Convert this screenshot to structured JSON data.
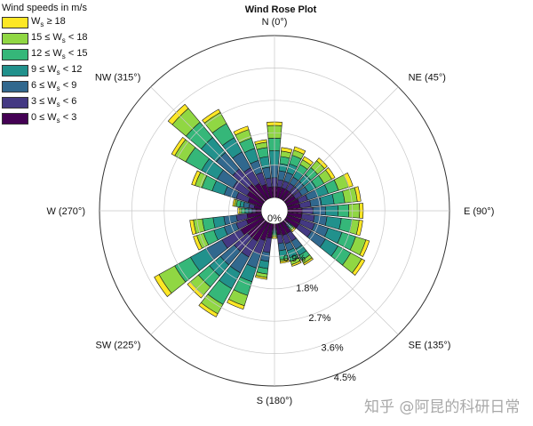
{
  "watermark": "知乎 @阿昆的科研日常",
  "chart_data": {
    "type": "rose",
    "title": "Wind Rose Plot",
    "legend": {
      "title": "Wind speeds in m/s",
      "placement": "top-left",
      "items": [
        {
          "lo": "18",
          "hi": "",
          "color": "#fde725"
        },
        {
          "lo": "15",
          "hi": "18",
          "color": "#90d743"
        },
        {
          "lo": "12",
          "hi": "15",
          "color": "#35b779"
        },
        {
          "lo": "9",
          "hi": "12",
          "color": "#21918c"
        },
        {
          "lo": "6",
          "hi": "9",
          "color": "#31688e"
        },
        {
          "lo": "3",
          "hi": "6",
          "color": "#443983"
        },
        {
          "lo": "0",
          "hi": "3",
          "color": "#440154"
        }
      ]
    },
    "speed_bins": [
      "0-3",
      "3-6",
      "6-9",
      "9-12",
      "12-15",
      "15-18",
      "18+"
    ],
    "bin_colors": [
      "#440154",
      "#443983",
      "#31688e",
      "#21918c",
      "#35b779",
      "#90d743",
      "#fde725"
    ],
    "directions": [
      {
        "angle": 0,
        "cumulative": [
          0.3,
          0.55,
          0.9,
          1.3,
          1.65,
          2.0,
          2.1
        ]
      },
      {
        "angle": 11.25,
        "cumulative": [
          0.3,
          0.5,
          0.75,
          0.95,
          1.15,
          1.3,
          1.4
        ]
      },
      {
        "angle": 22.5,
        "cumulative": [
          0.3,
          0.5,
          0.75,
          1.0,
          1.25,
          1.4,
          1.5
        ]
      },
      {
        "angle": 33.75,
        "cumulative": [
          0.3,
          0.5,
          0.7,
          0.9,
          1.1,
          1.25,
          1.35
        ]
      },
      {
        "angle": 45,
        "cumulative": [
          0.3,
          0.5,
          0.7,
          0.95,
          1.2,
          1.45,
          1.55
        ]
      },
      {
        "angle": 56.25,
        "cumulative": [
          0.3,
          0.5,
          0.7,
          0.95,
          1.2,
          1.45,
          1.55
        ]
      },
      {
        "angle": 67.5,
        "cumulative": [
          0.35,
          0.6,
          0.9,
          1.2,
          1.5,
          1.8,
          1.92
        ]
      },
      {
        "angle": 78.75,
        "cumulative": [
          0.35,
          0.65,
          0.95,
          1.3,
          1.6,
          1.95,
          2.05
        ]
      },
      {
        "angle": 90,
        "cumulative": [
          0.4,
          0.7,
          1.05,
          1.4,
          1.7,
          2.0,
          2.1
        ]
      },
      {
        "angle": 101.25,
        "cumulative": [
          0.4,
          0.75,
          1.1,
          1.5,
          1.8,
          2.0,
          2.1
        ]
      },
      {
        "angle": 112.5,
        "cumulative": [
          0.4,
          0.8,
          1.2,
          1.6,
          2.0,
          2.3,
          2.4
        ]
      },
      {
        "angle": 123.75,
        "cumulative": [
          0.4,
          0.8,
          1.25,
          1.65,
          2.05,
          2.4,
          2.5
        ]
      },
      {
        "angle": 135,
        "cumulative": [
          0.1,
          0.15,
          0.2,
          0.25,
          0.3,
          0.35,
          0.4
        ]
      },
      {
        "angle": 146.25,
        "cumulative": [
          0.35,
          0.6,
          0.85,
          1.05,
          1.2,
          1.3,
          1.35
        ]
      },
      {
        "angle": 157.5,
        "cumulative": [
          0.35,
          0.6,
          0.8,
          1.0,
          1.1,
          1.2,
          1.25
        ]
      },
      {
        "angle": 168.75,
        "cumulative": [
          0.3,
          0.55,
          0.75,
          0.9,
          1.0,
          1.05,
          1.1
        ]
      },
      {
        "angle": 180,
        "cumulative": [
          0.1,
          0.15,
          0.2,
          0.25,
          0.3,
          0.35,
          0.4
        ]
      },
      {
        "angle": 191.25,
        "cumulative": [
          0.4,
          0.8,
          1.05,
          1.25,
          1.4,
          1.5,
          1.55
        ]
      },
      {
        "angle": 202.5,
        "cumulative": [
          0.5,
          0.9,
          1.3,
          1.7,
          2.1,
          2.4,
          2.5
        ]
      },
      {
        "angle": 213.75,
        "cumulative": [
          0.6,
          1.1,
          1.6,
          2.1,
          2.6,
          2.9,
          3.0
        ]
      },
      {
        "angle": 225,
        "cumulative": [
          0.6,
          1.1,
          1.6,
          2.0,
          2.4,
          2.7,
          2.8
        ]
      },
      {
        "angle": 236.25,
        "cumulative": [
          0.7,
          1.3,
          1.8,
          2.3,
          2.8,
          3.3,
          3.45
        ]
      },
      {
        "angle": 247.5,
        "cumulative": [
          0.45,
          0.75,
          1.1,
          1.4,
          1.7,
          1.9,
          2.0
        ]
      },
      {
        "angle": 258.75,
        "cumulative": [
          0.4,
          0.7,
          1.05,
          1.35,
          1.65,
          1.9,
          2.0
        ]
      },
      {
        "angle": 270,
        "cumulative": [
          0.15,
          0.25,
          0.35,
          0.45,
          0.55,
          0.6,
          0.65
        ]
      },
      {
        "angle": 281.25,
        "cumulative": [
          0.2,
          0.35,
          0.5,
          0.6,
          0.7,
          0.75,
          0.8
        ]
      },
      {
        "angle": 292.5,
        "cumulative": [
          0.4,
          0.75,
          1.1,
          1.45,
          1.75,
          1.95,
          2.05
        ]
      },
      {
        "angle": 303.75,
        "cumulative": [
          0.5,
          0.95,
          1.45,
          1.95,
          2.45,
          2.8,
          2.9
        ]
      },
      {
        "angle": 315,
        "cumulative": [
          0.6,
          1.15,
          1.75,
          2.3,
          2.85,
          3.35,
          3.5
        ]
      },
      {
        "angle": 326.25,
        "cumulative": [
          0.5,
          1.0,
          1.5,
          1.95,
          2.4,
          2.75,
          2.85
        ]
      },
      {
        "angle": 337.5,
        "cumulative": [
          0.4,
          0.75,
          1.1,
          1.45,
          1.75,
          2.0,
          2.1
        ]
      },
      {
        "angle": 348.75,
        "cumulative": [
          0.3,
          0.55,
          0.85,
          1.15,
          1.4,
          1.55,
          1.62
        ]
      }
    ],
    "radial_ticks": [
      {
        "value": 0,
        "label": "0%"
      },
      {
        "value": 0.9,
        "label": "0.9%"
      },
      {
        "value": 1.8,
        "label": "1.8%"
      },
      {
        "value": 2.7,
        "label": "2.7%"
      },
      {
        "value": 3.6,
        "label": "3.6%"
      },
      {
        "value": 4.5,
        "label": "4.5%"
      }
    ],
    "direction_labels": [
      {
        "angle": 0,
        "label": "N (0°)"
      },
      {
        "angle": 45,
        "label": "NE (45°)"
      },
      {
        "angle": 90,
        "label": "E (90°)"
      },
      {
        "angle": 135,
        "label": "SE (135°)"
      },
      {
        "angle": 180,
        "label": "S (180°)"
      },
      {
        "angle": 225,
        "label": "SW (225°)"
      },
      {
        "angle": 270,
        "label": "W (270°)"
      },
      {
        "angle": 315,
        "label": "NW (315°)"
      }
    ],
    "ylim": [
      0,
      4.5
    ],
    "grid": true
  }
}
